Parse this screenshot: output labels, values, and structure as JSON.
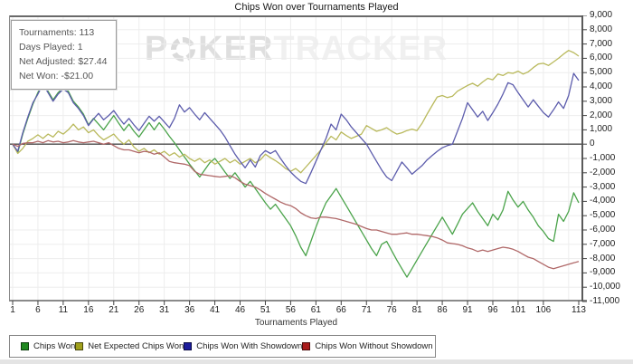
{
  "title": "Chips Won over Tournaments Played",
  "stats_box": {
    "lines": [
      "Tournaments: 113",
      "Days Played: 1",
      "Net Adjusted: $27.44",
      "Net Won: -$21.00"
    ]
  },
  "watermark": {
    "part1": "P",
    "part2": "KER",
    "part3": "TRACKER"
  },
  "chart_data": {
    "type": "line",
    "title": "Chips Won over Tournaments Played",
    "xlabel": "Tournaments Played",
    "ylabel": "",
    "ylim": [
      -11000,
      9000
    ],
    "ytick_step": 1000,
    "x_range": [
      1,
      113
    ],
    "xticks": [
      1,
      6,
      11,
      16,
      21,
      26,
      31,
      36,
      41,
      46,
      51,
      56,
      61,
      66,
      71,
      76,
      81,
      86,
      91,
      96,
      101,
      106,
      113
    ],
    "grid": true,
    "legend_position": "bottom",
    "colors": {
      "grid": "#ededed",
      "zero_line": "#4a4a4a",
      "axis": "#6a6a6a"
    },
    "series": [
      {
        "name": "Chips Won",
        "color": "#4aa34a",
        "swatch": "#208820",
        "values": [
          0,
          -600,
          700,
          1800,
          2800,
          3600,
          4300,
          3700,
          3100,
          3600,
          3950,
          3700,
          3000,
          2600,
          2100,
          1350,
          1800,
          1400,
          1000,
          1500,
          2000,
          1450,
          950,
          1400,
          900,
          500,
          1000,
          1500,
          1000,
          1500,
          1050,
          550,
          100,
          -400,
          -900,
          -1400,
          -1850,
          -2300,
          -1800,
          -1300,
          -1000,
          -1450,
          -1950,
          -2400,
          -2000,
          -2500,
          -3000,
          -2600,
          -3100,
          -3600,
          -4100,
          -4550,
          -4200,
          -4700,
          -5200,
          -5700,
          -6400,
          -7200,
          -7800,
          -6800,
          -5800,
          -4900,
          -4100,
          -3600,
          -3100,
          -3700,
          -4300,
          -4900,
          -5500,
          -6100,
          -6700,
          -7300,
          -7800,
          -7000,
          -6800,
          -7450,
          -8100,
          -8700,
          -9300,
          -8700,
          -8100,
          -7500,
          -6900,
          -6300,
          -5700,
          -5100,
          -5700,
          -6300,
          -5600,
          -4900,
          -4500,
          -4100,
          -4700,
          -5200,
          -5700,
          -4900,
          -5300,
          -4600,
          -3300,
          -3900,
          -4400,
          -4000,
          -4600,
          -5100,
          -5700,
          -6100,
          -6600,
          -6800,
          -4900,
          -5400,
          -4700,
          -3400,
          -4100
        ]
      },
      {
        "name": "Net Expected Chips Won",
        "color": "#b9b95c",
        "swatch": "#a0a01c",
        "values": [
          0,
          -650,
          -300,
          200,
          400,
          650,
          400,
          700,
          500,
          900,
          700,
          1000,
          1400,
          1000,
          1200,
          800,
          1000,
          600,
          300,
          500,
          700,
          300,
          0,
          300,
          -200,
          -500,
          -300,
          -600,
          -400,
          -700,
          -500,
          -800,
          -600,
          -900,
          -700,
          -1000,
          -1200,
          -1000,
          -1300,
          -1100,
          -1400,
          -1200,
          -1000,
          -1300,
          -1100,
          -1400,
          -1200,
          -1000,
          -1300,
          -1100,
          -700,
          -950,
          -1150,
          -1400,
          -1700,
          -1900,
          -1700,
          -2000,
          -1600,
          -1200,
          -800,
          -400,
          100,
          550,
          300,
          850,
          600,
          400,
          550,
          700,
          1300,
          1100,
          900,
          1000,
          1150,
          900,
          700,
          800,
          950,
          1050,
          950,
          1450,
          2100,
          2700,
          3300,
          3400,
          3250,
          3350,
          3700,
          3900,
          4100,
          4250,
          4050,
          4350,
          4600,
          4500,
          4900,
          4800,
          5000,
          4950,
          5100,
          4900,
          5050,
          5350,
          5600,
          5650,
          5500,
          5750,
          6000,
          6300,
          6550,
          6400,
          6150
        ]
      },
      {
        "name": "Chips Won With Showdown",
        "color": "#5c5cac",
        "swatch": "#1c1c9c",
        "values": [
          0,
          -500,
          800,
          1900,
          2900,
          3500,
          4200,
          3600,
          3000,
          3500,
          3850,
          3600,
          2900,
          2500,
          2000,
          1300,
          1750,
          2150,
          1700,
          2000,
          2350,
          1850,
          1400,
          1800,
          1350,
          950,
          1450,
          1950,
          1600,
          1950,
          1550,
          1150,
          1800,
          2750,
          2250,
          2550,
          2100,
          1700,
          2200,
          1800,
          1400,
          1000,
          500,
          -100,
          -700,
          -1200,
          -1650,
          -1100,
          -1600,
          -800,
          -450,
          -650,
          -450,
          -1000,
          -1500,
          -1950,
          -2300,
          -2600,
          -2750,
          -2000,
          -1200,
          -400,
          400,
          1400,
          1000,
          2100,
          1700,
          1200,
          800,
          400,
          0,
          -600,
          -1200,
          -1800,
          -2300,
          -2550,
          -1900,
          -1250,
          -1650,
          -2100,
          -1800,
          -1500,
          -1100,
          -800,
          -500,
          -250,
          -100,
          0,
          900,
          1800,
          2900,
          2400,
          1900,
          2300,
          1650,
          2200,
          2800,
          3500,
          4300,
          4150,
          3600,
          3100,
          2600,
          3100,
          2650,
          2200,
          1900,
          2400,
          2950,
          2500,
          3400,
          4950,
          4450
        ]
      },
      {
        "name": "Chips Won Without Showdown",
        "color": "#b06868",
        "swatch": "#aa1c1c",
        "values": [
          0,
          -150,
          50,
          100,
          100,
          200,
          100,
          250,
          150,
          200,
          100,
          150,
          250,
          150,
          100,
          150,
          200,
          100,
          0,
          100,
          -100,
          -300,
          -400,
          -400,
          -500,
          -600,
          -500,
          -550,
          -700,
          -600,
          -900,
          -1200,
          -1300,
          -1350,
          -1400,
          -1500,
          -1900,
          -2100,
          -2150,
          -2200,
          -2250,
          -2300,
          -2250,
          -2200,
          -2350,
          -2600,
          -2800,
          -2900,
          -3000,
          -3200,
          -3450,
          -3650,
          -3850,
          -4050,
          -4200,
          -4300,
          -4500,
          -4800,
          -5000,
          -5150,
          -5200,
          -5100,
          -5100,
          -5150,
          -5200,
          -5300,
          -5400,
          -5500,
          -5600,
          -5750,
          -5900,
          -6000,
          -6000,
          -6100,
          -6200,
          -6300,
          -6300,
          -6250,
          -6200,
          -6300,
          -6300,
          -6350,
          -6400,
          -6450,
          -6550,
          -6700,
          -6900,
          -6950,
          -7000,
          -7100,
          -7250,
          -7350,
          -7500,
          -7400,
          -7500,
          -7400,
          -7300,
          -7200,
          -7250,
          -7350,
          -7500,
          -7700,
          -7900,
          -8000,
          -8200,
          -8400,
          -8600,
          -8700,
          -8600,
          -8500,
          -8400,
          -8300,
          -8200
        ]
      }
    ]
  }
}
